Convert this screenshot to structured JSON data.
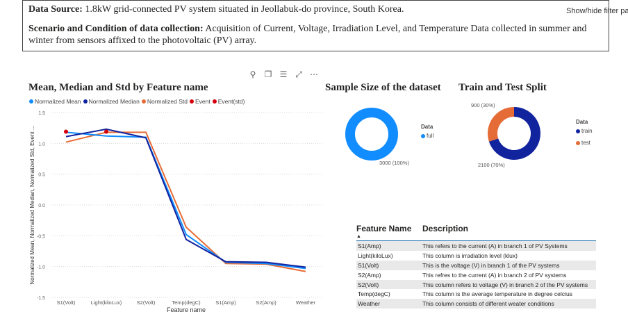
{
  "info": {
    "source_label": "Data Source:",
    "source_text": " 1.8kW grid-connected PV system situated in Jeollabuk-do province, South Korea.",
    "scenario_label": "Scenario and Condition of data collection:",
    "scenario_text": " Acquisition of Current, Voltage, Irradiation Level, and Temperature Data collected in summer and winter from sensors affixed to the photovoltaic (PV) array."
  },
  "tooltip": "Show/hide filter par",
  "toolbar": {
    "icons": [
      "pin-icon",
      "copy-icon",
      "filter-icon",
      "focus-mode-icon",
      "more-options-icon"
    ],
    "glyphs": [
      "⚲",
      "❐",
      "☰",
      "⤢",
      "⋯"
    ]
  },
  "line_chart": {
    "legend": [
      "Normalized Mean",
      "Normalized Median",
      "Normalized Std",
      "Event",
      "Event(std)"
    ],
    "colors": {
      "mean": "#118dff",
      "median": "#12239e",
      "std": "#e66c37",
      "event": "#d6000b"
    }
  },
  "chart_data": [
    {
      "type": "line",
      "title": "Mean, Median and Std by Feature name",
      "xlabel": "Feature name",
      "ylabel": "Normalized Mean, Normalized Median, Normalized Std, Event ...",
      "categories": [
        "S1(Volt)",
        "Light(kiloLux)",
        "S2(Volt)",
        "Temp(degC)",
        "S1(Amp)",
        "S2(Amp)",
        "Weather"
      ],
      "ylim": [
        -1.5,
        1.5
      ],
      "yticks": [
        "1.5",
        "1.0",
        "0.5",
        "0.0",
        "-0.5",
        "-1.0",
        "-1.5"
      ],
      "series": [
        {
          "name": "Normalized Mean",
          "values": [
            1.18,
            1.12,
            1.1,
            -0.48,
            -0.93,
            -0.95,
            -1.03
          ]
        },
        {
          "name": "Normalized Median",
          "values": [
            1.11,
            1.23,
            1.09,
            -0.56,
            -0.92,
            -0.93,
            -1.01
          ]
        },
        {
          "name": "Normalized Std",
          "values": [
            1.02,
            1.18,
            1.18,
            -0.36,
            -0.95,
            -0.96,
            -1.08
          ]
        },
        {
          "name": "Event",
          "points": [
            [
              "S1(Volt)",
              1.19
            ],
            [
              "Light(kiloLux)",
              1.19
            ]
          ]
        }
      ],
      "grid": true,
      "legend_position": "top-left"
    },
    {
      "type": "pie",
      "title": "Sample Size of the dataset",
      "legend_title": "Data",
      "slices": [
        {
          "name": "full",
          "value": 3000,
          "label": "3000 (100%)",
          "color": "#118dff"
        }
      ]
    },
    {
      "type": "pie",
      "title": "Train and Test Split",
      "legend_title": "Data",
      "slices": [
        {
          "name": "train",
          "value": 2100,
          "label": "2100 (70%)",
          "color": "#12239e"
        },
        {
          "name": "test",
          "value": 900,
          "label": "900 (30%)",
          "color": "#e66c37"
        }
      ]
    }
  ],
  "table": {
    "headers": [
      "Feature Name",
      "Description"
    ],
    "sort_indicator": "▲",
    "rows": [
      [
        "S1(Amp)",
        "This refers to the current (A) in branch 1 of PV Systems"
      ],
      [
        "Light(kiloLux)",
        "This column is irradiation level (klux)"
      ],
      [
        "S1(Volt)",
        "This is the voltage (V) in branch 1 of the PV systems"
      ],
      [
        "S2(Amp)",
        "This refres to the current (A) in branch 2 of PV systems"
      ],
      [
        "S2(Volt)",
        "This column refers to voltage (V) in branch 2 of the PV systems"
      ],
      [
        "Temp(degC)",
        "This column is the average temperature in degree celcius"
      ],
      [
        "Weather",
        "This column consists of different weater conditions"
      ]
    ]
  }
}
